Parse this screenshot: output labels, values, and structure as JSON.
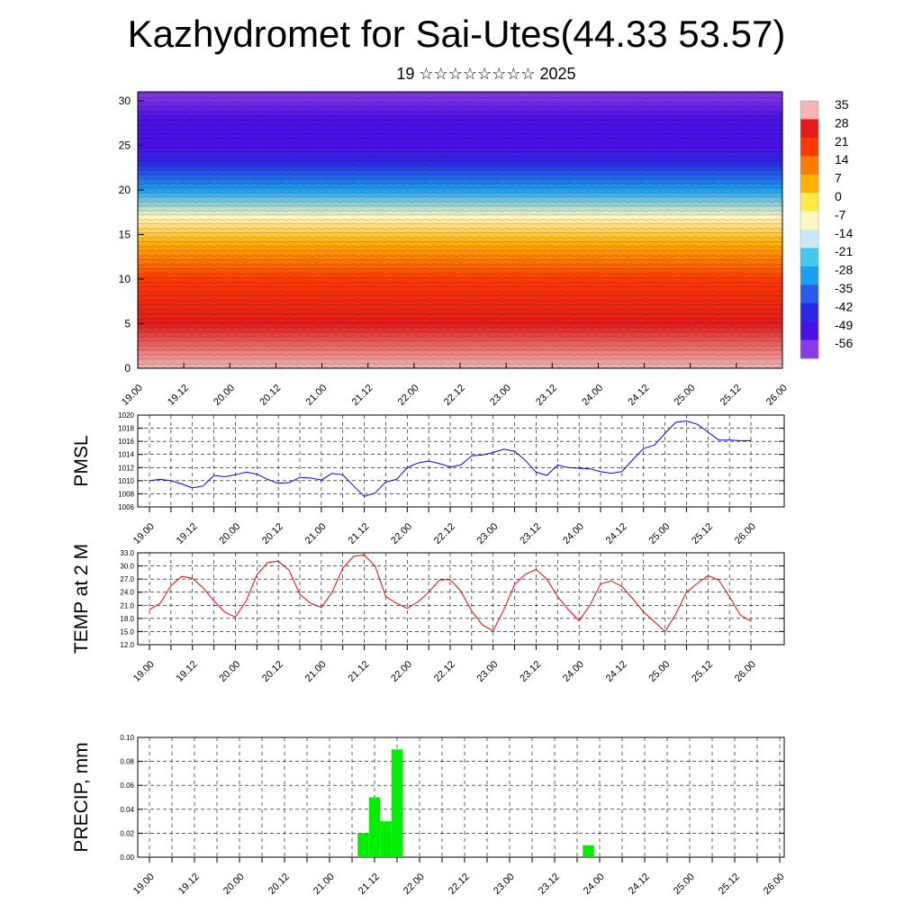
{
  "title": "Kazhydromet for Sai-Utes(44.33 53.57)",
  "subtitle": "19 ☆☆☆☆☆☆☆☆ 2025",
  "time_labels": [
    "19.00",
    "19.12",
    "20.00",
    "20.12",
    "21.00",
    "21.12",
    "22.00",
    "22.12",
    "23.00",
    "23.12",
    "24.00",
    "24.12",
    "25.00",
    "25.12",
    "26.00"
  ],
  "chart_data": [
    {
      "type": "heatmap",
      "panel": "cross-section",
      "x_labels": [
        "19.00",
        "19.12",
        "20.00",
        "20.12",
        "21.00",
        "21.12",
        "22.00",
        "22.12",
        "23.00",
        "23.12",
        "24.00",
        "24.12",
        "25.00",
        "25.12",
        "26.00"
      ],
      "y_ticks": [
        "0",
        "5",
        "10",
        "15",
        "20",
        "25",
        "30"
      ],
      "ylim": [
        0,
        31
      ],
      "colorbar_labels": [
        "35",
        "28",
        "21",
        "14",
        "7",
        "0",
        "-7",
        "-14",
        "-21",
        "-28",
        "-35",
        "-42",
        "-49",
        "-56"
      ],
      "colorbar_colors": [
        "#f2b6b6",
        "#e51a1a",
        "#ff3a00",
        "#ff7a00",
        "#ffb000",
        "#ffe84a",
        "#fff8c0",
        "#c8e8f4",
        "#46c8ee",
        "#1aa0ee",
        "#2a5aee",
        "#2c28e6",
        "#4a10e8",
        "#8a3ae6"
      ],
      "vertical_profile": [
        {
          "level": 0,
          "value": 30
        },
        {
          "level": 5,
          "value": 25
        },
        {
          "level": 10,
          "value": 17
        },
        {
          "level": 14,
          "value": 5
        },
        {
          "level": 17,
          "value": -14
        },
        {
          "level": 20,
          "value": -30
        },
        {
          "level": 23,
          "value": -45
        },
        {
          "level": 25,
          "value": -50
        },
        {
          "level": 28,
          "value": -56
        },
        {
          "level": 31,
          "value": -60
        }
      ]
    },
    {
      "type": "line",
      "ylabel": "PMSL",
      "ylim": [
        1006,
        1020
      ],
      "y_ticks": [
        "1006",
        "1008",
        "1010",
        "1012",
        "1014",
        "1016",
        "1018",
        "1020"
      ],
      "x_labels": [
        "19.00",
        "19.12",
        "20.00",
        "20.12",
        "21.00",
        "21.12",
        "22.00",
        "22.12",
        "23.00",
        "23.12",
        "24.00",
        "24.12",
        "25.00",
        "25.12",
        "26.00"
      ],
      "color": "#0000ff",
      "values": [
        1010.0,
        1010.2,
        1010.0,
        1009.5,
        1008.9,
        1009.2,
        1010.8,
        1010.6,
        1010.9,
        1011.3,
        1011.0,
        1010.2,
        1009.6,
        1009.7,
        1010.5,
        1010.4,
        1010.1,
        1011.1,
        1010.9,
        1009.2,
        1007.6,
        1008.1,
        1009.8,
        1010.2,
        1012.0,
        1012.7,
        1013.0,
        1012.6,
        1012.1,
        1012.4,
        1013.8,
        1013.9,
        1014.3,
        1014.8,
        1014.5,
        1013.1,
        1011.3,
        1010.8,
        1012.4,
        1012.0,
        1011.9,
        1011.8,
        1011.4,
        1011.1,
        1011.4,
        1013.2,
        1014.9,
        1015.4,
        1017.2,
        1018.9,
        1019.1,
        1018.6,
        1017.4,
        1016.2,
        1016.2,
        1016.1,
        1016.1
      ]
    },
    {
      "type": "line",
      "ylabel": "TEMP at 2 M",
      "ylim": [
        12,
        33
      ],
      "y_ticks": [
        "12.0",
        "15.0",
        "18.0",
        "21.0",
        "24.0",
        "27.0",
        "30.0",
        "33.0"
      ],
      "x_labels": [
        "19.00",
        "19.12",
        "20.00",
        "20.12",
        "21.00",
        "21.12",
        "22.00",
        "22.12",
        "23.00",
        "23.12",
        "24.00",
        "24.12",
        "25.00",
        "25.12",
        "26.00"
      ],
      "color": "#ff0000",
      "values": [
        20,
        21.5,
        25.5,
        27.6,
        27.2,
        25,
        22,
        19.5,
        18.3,
        22,
        28,
        30.8,
        31.1,
        29,
        23.5,
        21.5,
        20.5,
        24,
        29.5,
        32.2,
        32.5,
        30,
        23,
        21.5,
        20.3,
        21.8,
        24,
        26.8,
        26.9,
        24.2,
        19.7,
        16.5,
        15.2,
        20,
        25.8,
        28.1,
        29.2,
        27,
        23,
        20,
        17.5,
        21,
        25.9,
        26.6,
        25.3,
        22.5,
        19.5,
        17.3,
        15,
        19,
        24,
        26,
        27.8,
        26.8,
        23,
        18.8,
        17.4
      ]
    },
    {
      "type": "bar",
      "ylabel": "PRECIP, mm",
      "ylim": [
        0,
        0.1
      ],
      "y_ticks": [
        "0.00",
        "0.02",
        "0.04",
        "0.06",
        "0.08",
        "0.10"
      ],
      "x_labels": [
        "19.00",
        "19.12",
        "20.00",
        "20.12",
        "21.00",
        "21.12",
        "22.00",
        "22.12",
        "23.00",
        "23.12",
        "24.00",
        "24.12",
        "25.00",
        "25.12",
        "26.00"
      ],
      "color": "#00ee00",
      "bars": [
        {
          "x_hour": 57,
          "value": 0.02
        },
        {
          "x_hour": 60,
          "value": 0.05
        },
        {
          "x_hour": 63,
          "value": 0.03
        },
        {
          "x_hour": 66,
          "value": 0.09
        },
        {
          "x_hour": 117,
          "value": 0.01
        }
      ]
    }
  ]
}
